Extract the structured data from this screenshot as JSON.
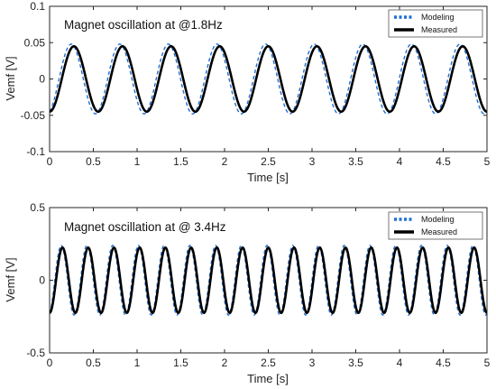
{
  "chart_data": [
    {
      "type": "line",
      "title": "Magnet oscillation at @1.8Hz",
      "xlabel": "Time  [s]",
      "ylabel": "Vemf [V]",
      "xlim": [
        0,
        5
      ],
      "ylim": [
        -0.1,
        0.1
      ],
      "xticks": [
        "0",
        "0.5",
        "1",
        "1.5",
        "2",
        "2.5",
        "3",
        "3.5",
        "4",
        "4.5",
        "5"
      ],
      "yticks": [
        "-0.1",
        "-0.05",
        "0",
        "0.05",
        "0.1"
      ],
      "grid": false,
      "legend_position": "top-right",
      "frequency_hz": 1.8,
      "series": [
        {
          "name": "Modeling",
          "style": "dotted",
          "color": "#1f6fd6",
          "amplitude": 0.048,
          "phase_rad": 0.35
        },
        {
          "name": "Measured",
          "style": "solid",
          "color": "#000000",
          "amplitude": 0.045,
          "phase_rad": 0.0
        }
      ]
    },
    {
      "type": "line",
      "title": "Magnet oscillation at @ 3.4Hz",
      "xlabel": "Time  [s]",
      "ylabel": "Vemf [V]",
      "xlim": [
        0,
        5
      ],
      "ylim": [
        -0.5,
        0.5
      ],
      "xticks": [
        "0",
        "0.5",
        "1",
        "1.5",
        "2",
        "2.5",
        "3",
        "3.5",
        "4",
        "4.5",
        "5"
      ],
      "yticks": [
        "-0.5",
        "0",
        "0.5"
      ],
      "grid": false,
      "legend_position": "top-right",
      "frequency_hz": 3.4,
      "series": [
        {
          "name": "Modeling",
          "style": "dotted",
          "color": "#1f6fd6",
          "amplitude": 0.24,
          "phase_rad": 0.3
        },
        {
          "name": "Measured",
          "style": "solid",
          "color": "#000000",
          "amplitude": 0.225,
          "phase_rad": 0.0
        }
      ]
    }
  ]
}
